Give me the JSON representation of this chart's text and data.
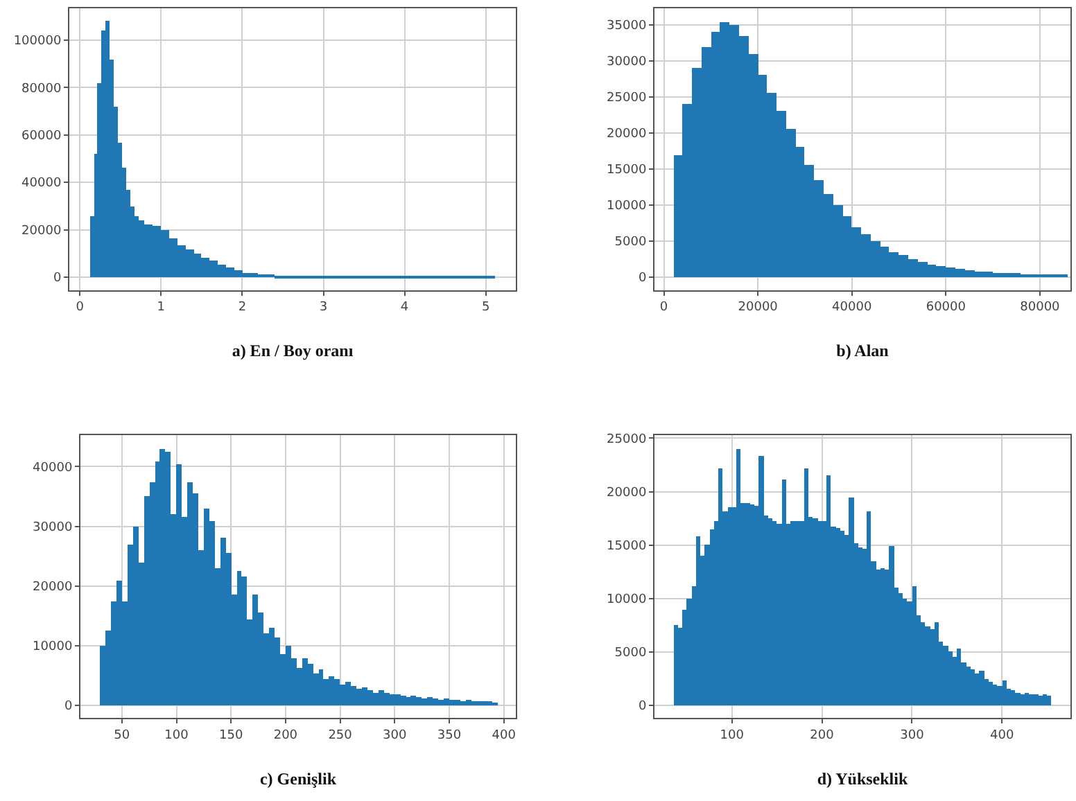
{
  "chart_data": [
    {
      "type": "histogram",
      "xlabel": "a) En / Boy oranı",
      "color": "#1f77b4",
      "grid": true,
      "bins": [
        0.12,
        0.17,
        0.22,
        0.27,
        0.32,
        0.37,
        0.42,
        0.47,
        0.52,
        0.57,
        0.62,
        0.67,
        0.72,
        0.8,
        0.9,
        1.0,
        1.1,
        1.2,
        1.3,
        1.4,
        1.5,
        1.6,
        1.7,
        1.8,
        1.9,
        2.0,
        2.1,
        2.2,
        2.4,
        2.6,
        3.0,
        3.5,
        4.0,
        4.55,
        5.12
      ],
      "values": [
        26000,
        52000,
        82000,
        104000,
        108000,
        92000,
        72000,
        57000,
        46000,
        37000,
        30000,
        26000,
        24000,
        22500,
        21500,
        20000,
        16500,
        13500,
        11500,
        10000,
        8500,
        7000,
        5500,
        4000,
        3000,
        2000,
        1500,
        1200,
        800,
        700,
        600,
        600,
        600,
        300
      ],
      "xlim": [
        -0.13,
        5.37
      ],
      "xticks": [
        0,
        1,
        2,
        3,
        4,
        5
      ],
      "ylim": [
        -5400,
        113400
      ],
      "yticks": [
        0,
        20000,
        40000,
        60000,
        80000,
        100000
      ]
    },
    {
      "type": "histogram",
      "xlabel": "b) Alan",
      "color": "#1f77b4",
      "grid": true,
      "bins": [
        2000,
        4000,
        6000,
        8000,
        10000,
        12000,
        14000,
        16000,
        18000,
        20000,
        22000,
        24000,
        26000,
        28000,
        30000,
        32000,
        34000,
        36000,
        38000,
        40000,
        42000,
        44000,
        46000,
        48000,
        50000,
        52000,
        54000,
        56000,
        58000,
        60000,
        62000,
        64000,
        66000,
        68000,
        70000,
        72000,
        74000,
        76000,
        78000,
        80000,
        82000,
        84000,
        86000
      ],
      "values": [
        17000,
        24000,
        29000,
        32000,
        34000,
        35300,
        35000,
        33500,
        31000,
        28000,
        25500,
        23000,
        20500,
        18000,
        15500,
        13500,
        11500,
        10000,
        8500,
        7000,
        6000,
        5000,
        4200,
        3500,
        3000,
        2500,
        2100,
        1800,
        1500,
        1300,
        1100,
        950,
        800,
        700,
        600,
        550,
        500,
        450,
        400,
        350,
        300,
        250
      ],
      "xlim": [
        -2000,
        86500
      ],
      "xticks": [
        0,
        20000,
        40000,
        60000,
        80000
      ],
      "ylim": [
        -1800,
        37300
      ],
      "yticks": [
        0,
        5000,
        10000,
        15000,
        20000,
        25000,
        30000,
        35000
      ]
    },
    {
      "type": "histogram",
      "xlabel": "c) Genişlik",
      "color": "#1f77b4",
      "grid": true,
      "bins": [
        30,
        35,
        40,
        45,
        50,
        55,
        60,
        65,
        70,
        75,
        80,
        85,
        90,
        95,
        100,
        105,
        110,
        115,
        120,
        125,
        130,
        135,
        140,
        145,
        150,
        155,
        160,
        165,
        170,
        175,
        180,
        185,
        190,
        195,
        200,
        205,
        210,
        215,
        220,
        225,
        230,
        235,
        240,
        245,
        250,
        255,
        260,
        265,
        270,
        275,
        280,
        285,
        290,
        295,
        300,
        305,
        310,
        315,
        320,
        325,
        330,
        335,
        340,
        345,
        350,
        355,
        360,
        365,
        370,
        375,
        380,
        385,
        390,
        395
      ],
      "values": [
        10000,
        12500,
        17500,
        20800,
        17500,
        27000,
        30000,
        24000,
        35000,
        37500,
        41000,
        43000,
        42500,
        32000,
        40500,
        31500,
        37500,
        35500,
        26000,
        33000,
        31000,
        23000,
        28000,
        25500,
        18500,
        22500,
        21500,
        14500,
        18500,
        15500,
        12000,
        13000,
        11500,
        8500,
        10000,
        8000,
        6200,
        8000,
        7000,
        5300,
        6000,
        4500,
        5000,
        4500,
        3500,
        4000,
        3200,
        2800,
        3000,
        2600,
        2200,
        2500,
        2000,
        1800,
        1900,
        1600,
        1400,
        1600,
        1300,
        1200,
        1300,
        1100,
        1000,
        1100,
        900,
        900,
        800,
        900,
        700,
        800,
        600,
        700,
        500
      ],
      "xlim": [
        12,
        411
      ],
      "xticks": [
        50,
        100,
        150,
        200,
        250,
        300,
        350,
        400
      ],
      "ylim": [
        -2150,
        45300
      ],
      "yticks": [
        0,
        10000,
        20000,
        30000,
        40000
      ]
    },
    {
      "type": "histogram",
      "xlabel": "d) Yükseklik",
      "color": "#1f77b4",
      "grid": true,
      "bins": [
        35,
        40,
        45,
        50,
        55,
        60,
        65,
        70,
        75,
        80,
        85,
        90,
        95,
        100,
        105,
        110,
        115,
        120,
        125,
        130,
        135,
        140,
        145,
        150,
        155,
        160,
        165,
        170,
        175,
        180,
        185,
        190,
        195,
        200,
        205,
        210,
        215,
        220,
        225,
        230,
        235,
        240,
        245,
        250,
        255,
        260,
        265,
        270,
        275,
        280,
        285,
        290,
        295,
        300,
        305,
        310,
        315,
        320,
        325,
        330,
        335,
        340,
        345,
        350,
        355,
        360,
        365,
        370,
        375,
        380,
        385,
        390,
        395,
        400,
        405,
        410,
        415,
        420,
        425,
        430,
        435,
        440,
        445,
        450,
        455
      ],
      "values": [
        7500,
        7300,
        9000,
        10000,
        11200,
        15800,
        14000,
        15000,
        16500,
        17200,
        22200,
        18200,
        18500,
        18500,
        24000,
        19000,
        19000,
        18800,
        18700,
        23300,
        17800,
        17500,
        17200,
        17000,
        21200,
        17000,
        17200,
        17300,
        17300,
        22200,
        17600,
        17500,
        17300,
        17200,
        21500,
        16700,
        16600,
        16300,
        15900,
        19500,
        15200,
        14800,
        14700,
        18200,
        13500,
        12700,
        12800,
        12700,
        14900,
        11000,
        10500,
        10000,
        9700,
        11200,
        8500,
        7800,
        7400,
        7200,
        7800,
        6000,
        5600,
        5000,
        4600,
        5300,
        4000,
        3600,
        3400,
        3000,
        3300,
        2500,
        2200,
        2000,
        1800,
        2300,
        1600,
        1400,
        1200,
        1100,
        1200,
        1000,
        1000,
        900,
        1000,
        900
      ],
      "xlim": [
        14,
        476
      ],
      "xticks": [
        100,
        200,
        300,
        400
      ],
      "ylim": [
        -1200,
        25300
      ],
      "yticks": [
        0,
        5000,
        10000,
        15000,
        20000,
        25000
      ]
    }
  ]
}
